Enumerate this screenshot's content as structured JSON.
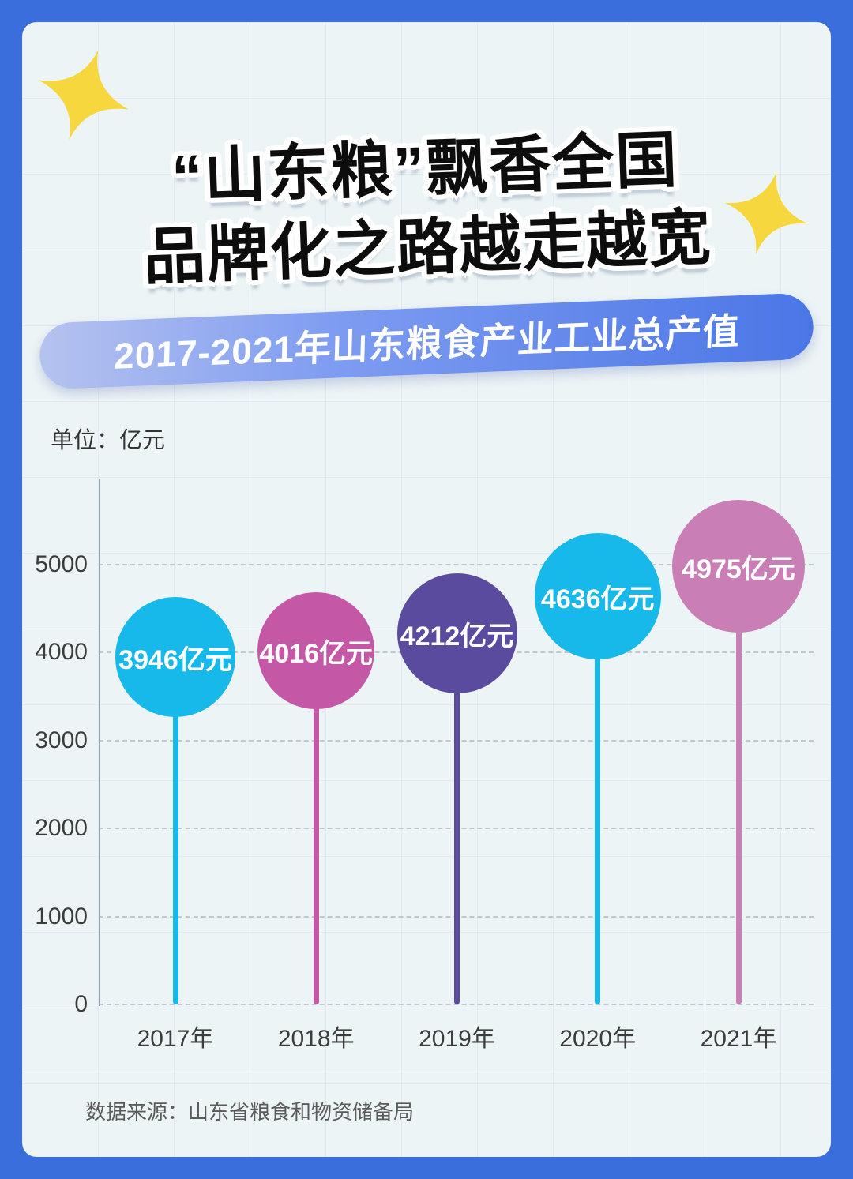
{
  "header": {
    "title_line1": "“山东粮”飘香全国",
    "title_line2": "品牌化之路越走越宽",
    "banner": "2017-2021年山东粮食产业工业总产值"
  },
  "chart": {
    "unit_label": "单位：亿元"
  },
  "footer": {
    "source": "数据来源：山东省粮食和物资储备局"
  },
  "colors": {
    "page_background": "#3a6edc",
    "card_background": "#edf4f6",
    "banner_gradient_start": "#b6c3ef",
    "banner_gradient_end": "#4b76e6",
    "sparkle_yellow": "#f6d73d"
  },
  "chart_data": {
    "type": "lollipop",
    "title": "2017-2021年山东粮食产业工业总产值",
    "unit": "亿元",
    "categories": [
      "2017年",
      "2018年",
      "2019年",
      "2020年",
      "2021年"
    ],
    "values": [
      3946,
      4016,
      4212,
      4636,
      4975
    ],
    "value_labels": [
      "3946亿元",
      "4016亿元",
      "4212亿元",
      "4636亿元",
      "4975亿元"
    ],
    "point_colors": [
      "#17b8ea",
      "#c558a6",
      "#5b4b9f",
      "#17b8ea",
      "#c97fb5"
    ],
    "yticks": [
      0,
      1000,
      2000,
      3000,
      4000,
      5000
    ],
    "ylim": [
      0,
      5600
    ],
    "xlabel": "",
    "ylabel": "亿元",
    "grid": "dashed-horizontal",
    "legend": "none",
    "source": "山东省粮食和物资储备局"
  }
}
